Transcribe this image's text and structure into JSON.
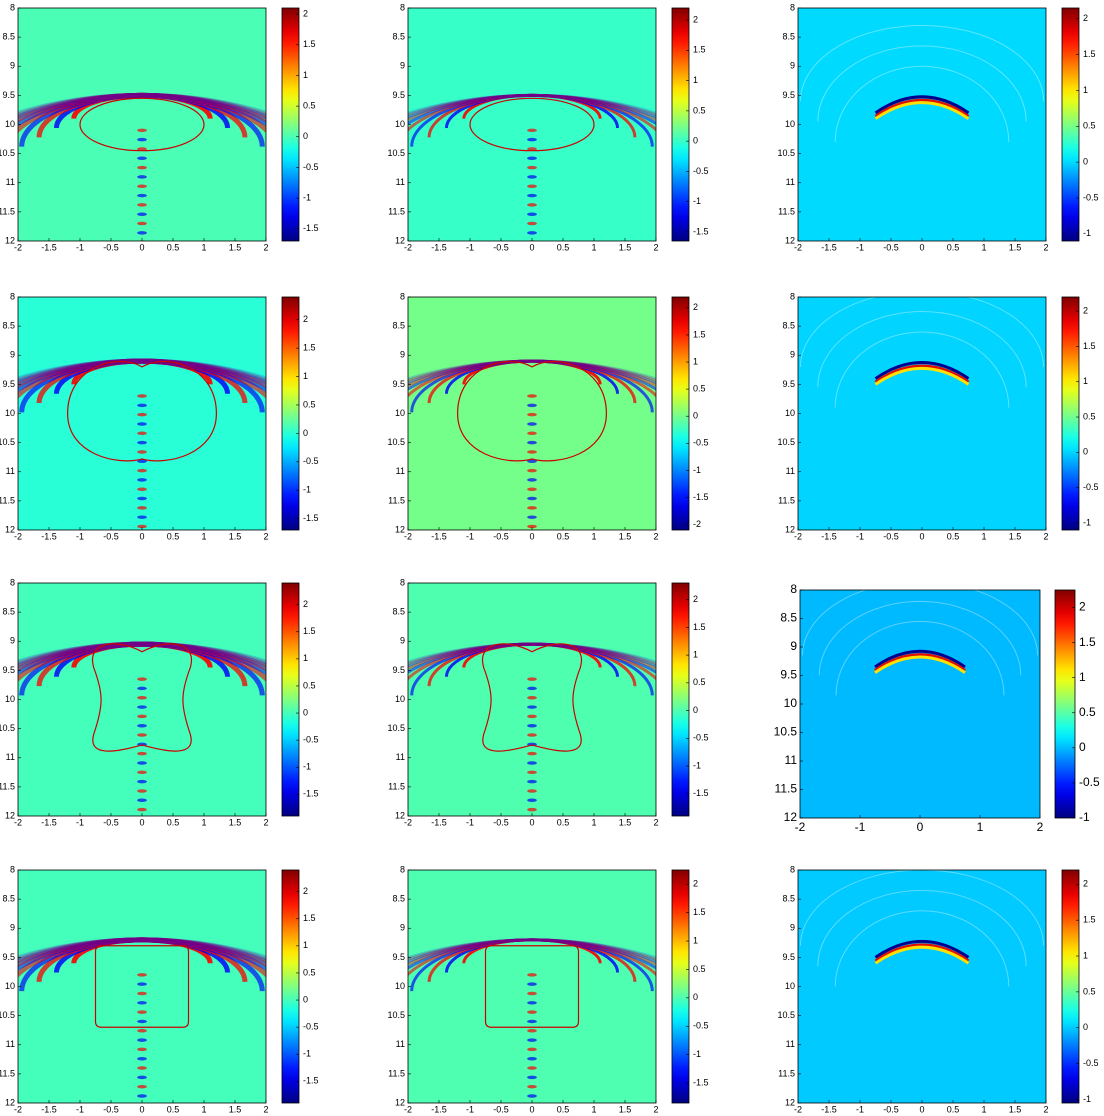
{
  "chart_data": [
    {
      "type": "heatmap",
      "colormap": "jet",
      "xlim": [
        -2,
        2
      ],
      "ylim": [
        8,
        12
      ],
      "xticks": [
        -2,
        -1.5,
        -1,
        -0.5,
        0,
        0.5,
        1,
        1.5,
        2
      ],
      "yticks": [
        8,
        8.5,
        9,
        9.5,
        10,
        10.5,
        11,
        11.5,
        12
      ],
      "clim": [
        -1.7,
        2.1
      ],
      "cticks": [
        -1.5,
        -1,
        -0.5,
        0,
        0.5,
        1,
        1.5,
        2
      ]
    },
    {
      "type": "heatmap",
      "colormap": "jet",
      "xlim": [
        -2,
        2
      ],
      "ylim": [
        8,
        12
      ],
      "xticks": [
        -2,
        -1.5,
        -1,
        -0.5,
        0,
        0.5,
        1,
        1.5,
        2
      ],
      "yticks": [
        8,
        8.5,
        9,
        9.5,
        10,
        10.5,
        11,
        11.5,
        12
      ],
      "clim": [
        -1.65,
        2.2
      ],
      "cticks": [
        -1.5,
        -1,
        -0.5,
        0,
        0.5,
        1,
        1.5,
        2
      ]
    },
    {
      "type": "heatmap",
      "colormap": "jet",
      "xlim": [
        -2,
        2
      ],
      "ylim": [
        8,
        12
      ],
      "xticks": [
        -2,
        -1.5,
        -1,
        -0.5,
        0,
        0.5,
        1,
        1.5,
        2
      ],
      "yticks": [
        8,
        8.5,
        9,
        9.5,
        10,
        10.5,
        11,
        11.5,
        12
      ],
      "clim": [
        -1.1,
        2.15
      ],
      "cticks": [
        -1,
        -0.5,
        0,
        0.5,
        1,
        1.5,
        2
      ]
    },
    {
      "type": "heatmap",
      "colormap": "jet",
      "xlim": [
        -2,
        2
      ],
      "ylim": [
        8,
        12
      ],
      "xticks": [
        -2,
        -1.5,
        -1,
        -0.5,
        0,
        0.5,
        1,
        1.5,
        2
      ],
      "yticks": [
        8,
        8.5,
        9,
        9.5,
        10,
        10.5,
        11,
        11.5,
        12
      ],
      "clim": [
        -1.7,
        2.4
      ],
      "cticks": [
        -1.5,
        -1,
        -0.5,
        0,
        0.5,
        1,
        1.5,
        2
      ]
    },
    {
      "type": "heatmap",
      "colormap": "jet",
      "xlim": [
        -2,
        2
      ],
      "ylim": [
        8,
        12
      ],
      "xticks": [
        -2,
        -1.5,
        -1,
        -0.5,
        0,
        0.5,
        1,
        1.5,
        2
      ],
      "yticks": [
        8,
        8.5,
        9,
        9.5,
        10,
        10.5,
        11,
        11.5,
        12
      ],
      "clim": [
        -2.1,
        2.2
      ],
      "cticks": [
        -2,
        -1.5,
        -1,
        -0.5,
        0,
        0.5,
        1,
        1.5,
        2
      ]
    },
    {
      "type": "heatmap",
      "colormap": "jet",
      "xlim": [
        -2,
        2
      ],
      "ylim": [
        8,
        12
      ],
      "xticks": [
        -2,
        -1.5,
        -1,
        -0.5,
        0,
        0.5,
        1,
        1.5,
        2
      ],
      "yticks": [
        8,
        8.5,
        9,
        9.5,
        10,
        10.5,
        11,
        11.5,
        12
      ],
      "clim": [
        -1.1,
        2.2
      ],
      "cticks": [
        -1,
        -0.5,
        0,
        0.5,
        1,
        1.5,
        2
      ]
    },
    {
      "type": "heatmap",
      "colormap": "jet",
      "xlim": [
        -2,
        2
      ],
      "ylim": [
        8,
        12
      ],
      "xticks": [
        -2,
        -1.5,
        -1,
        -0.5,
        0,
        0.5,
        1,
        1.5,
        2
      ],
      "yticks": [
        8,
        8.5,
        9,
        9.5,
        10,
        10.5,
        11,
        11.5,
        12
      ],
      "clim": [
        -1.9,
        2.4
      ],
      "cticks": [
        -1.5,
        -1,
        -0.5,
        0,
        0.5,
        1,
        1.5,
        2
      ]
    },
    {
      "type": "heatmap",
      "colormap": "jet",
      "xlim": [
        -2,
        2
      ],
      "ylim": [
        8,
        12
      ],
      "xticks": [
        -2,
        -1.5,
        -1,
        -0.5,
        0,
        0.5,
        1,
        1.5,
        2
      ],
      "yticks": [
        8,
        8.5,
        9,
        9.5,
        10,
        10.5,
        11,
        11.5,
        12
      ],
      "clim": [
        -1.9,
        2.3
      ],
      "cticks": [
        -1.5,
        -1,
        -0.5,
        0,
        0.5,
        1,
        1.5,
        2
      ]
    },
    {
      "type": "heatmap",
      "colormap": "jet",
      "xlim": [
        -2,
        2
      ],
      "ylim": [
        8,
        12
      ],
      "xticks": [
        -2,
        -1,
        0,
        1,
        2
      ],
      "yticks": [
        8,
        8.5,
        9,
        9.5,
        10,
        10.5,
        11,
        11.5,
        12
      ],
      "clim": [
        -1,
        2.25
      ],
      "cticks": [
        -1,
        -0.5,
        0,
        0.5,
        1,
        1.5,
        2
      ]
    },
    {
      "type": "heatmap",
      "colormap": "jet",
      "xlim": [
        -2,
        2
      ],
      "ylim": [
        8,
        12
      ],
      "xticks": [
        -2,
        -1.5,
        -1,
        -0.5,
        0,
        0.5,
        1,
        1.5,
        2
      ],
      "yticks": [
        8,
        8.5,
        9,
        9.5,
        10,
        10.5,
        11,
        11.5,
        12
      ],
      "clim": [
        -1.9,
        2.4
      ],
      "cticks": [
        -1.5,
        -1,
        -0.5,
        0,
        0.5,
        1,
        1.5,
        2
      ]
    },
    {
      "type": "heatmap",
      "colormap": "jet",
      "xlim": [
        -2,
        2
      ],
      "ylim": [
        8,
        12
      ],
      "xticks": [
        -2,
        -1.5,
        -1,
        -0.5,
        0,
        0.5,
        1,
        1.5,
        2
      ],
      "yticks": [
        8,
        8.5,
        9,
        9.5,
        10,
        10.5,
        11,
        11.5,
        12
      ],
      "clim": [
        -1.85,
        2.25
      ],
      "cticks": [
        -1.5,
        -1,
        -0.5,
        0,
        0.5,
        1,
        1.5,
        2
      ]
    },
    {
      "type": "heatmap",
      "colormap": "jet",
      "xlim": [
        -2,
        2
      ],
      "ylim": [
        8,
        12
      ],
      "xticks": [
        -2,
        -1.5,
        -1,
        -0.5,
        0,
        0.5,
        1,
        1.5,
        2
      ],
      "yticks": [
        8,
        8.5,
        9,
        9.5,
        10,
        10.5,
        11,
        11.5,
        12
      ],
      "clim": [
        -1.05,
        2.2
      ],
      "cticks": [
        -1,
        -0.5,
        0,
        0.5,
        1,
        1.5,
        2
      ]
    }
  ]
}
